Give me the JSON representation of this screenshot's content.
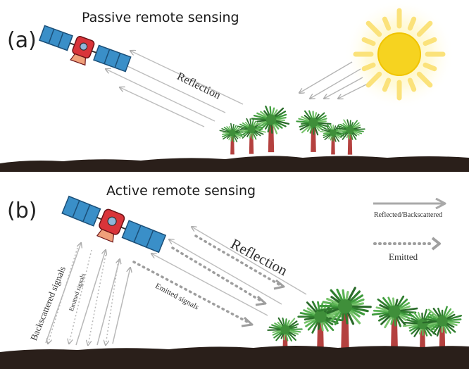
{
  "panels": {
    "a": {
      "letter": "(a)",
      "title": "Passive remote sensing",
      "reflection_label": "Reflection"
    },
    "b": {
      "letter": "(b)",
      "title": "Active remote sensing",
      "reflection_label": "Reflection",
      "backscattered_label": "Backscattered signals",
      "emitted_small_label": "Emitted signals",
      "emitted_label": "Emitted signals"
    }
  },
  "legend": {
    "reflected": "Reflected/Backscattered",
    "emitted": "Emitted"
  },
  "colors": {
    "satellite_body": "#d9343a",
    "solar_panel": "#3a8fc8",
    "solar_panel_dark": "#1e5f8f",
    "sun": "#f7d51d",
    "sun_rays": "#fbe57a",
    "ground": "#2a1f1a",
    "arrow_gray": "#aaaaaa",
    "tree_trunk": "#b4413f",
    "foliage": "#3e9a3c"
  }
}
